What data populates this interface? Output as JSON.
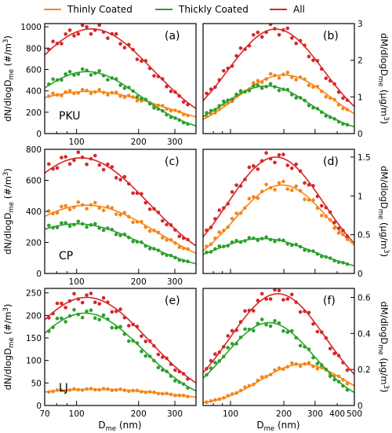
{
  "legend": [
    {
      "label": "Thinly Coated",
      "color": "#f58518"
    },
    {
      "label": "Thickly Coated",
      "color": "#2ca02c"
    },
    {
      "label": "All",
      "color": "#d62728"
    }
  ],
  "axis_labels": {
    "number": "dN/dlogD_me (#/m^3)",
    "mass": "dM/dlogD_me (µg/m^3)",
    "x": "D_me (nm)"
  },
  "site_labels": [
    "PKU",
    "CP",
    "LJ"
  ],
  "chart_data": [
    {
      "panel": "(a)",
      "type": "line",
      "site": "PKU",
      "quantity": "number",
      "xscale": "log",
      "xlim": [
        70,
        380
      ],
      "ylim": [
        0,
        1030
      ],
      "yticks": [
        0,
        200,
        400,
        600,
        800,
        1000
      ],
      "xticks": [
        100,
        200,
        300
      ],
      "series": [
        {
          "name": "Thinly Coated",
          "color": "#f58518",
          "peak": 395,
          "mode": 115,
          "width": 0.38
        },
        {
          "name": "Thickly Coated",
          "color": "#2ca02c",
          "peak": 580,
          "mode": 112,
          "width": 0.26
        },
        {
          "name": "All",
          "color": "#d62728",
          "peak": 980,
          "mode": 118,
          "width": 0.3
        }
      ]
    },
    {
      "panel": "(b)",
      "type": "line",
      "site": "PKU",
      "quantity": "mass",
      "xscale": "log",
      "xlim": [
        70,
        500
      ],
      "ylim": [
        0,
        3
      ],
      "yticks": [
        0,
        1,
        2,
        3
      ],
      "xticks": [],
      "series": [
        {
          "name": "Thinly Coated",
          "color": "#f58518",
          "peak": 1.6,
          "mode": 200,
          "width": 0.27
        },
        {
          "name": "Thickly Coated",
          "color": "#2ca02c",
          "peak": 1.3,
          "mode": 160,
          "width": 0.25
        },
        {
          "name": "All",
          "color": "#d62728",
          "peak": 2.85,
          "mode": 180,
          "width": 0.27
        }
      ]
    },
    {
      "panel": "(c)",
      "type": "line",
      "site": "CP",
      "quantity": "number",
      "xscale": "log",
      "xlim": [
        70,
        380
      ],
      "ylim": [
        0,
        800
      ],
      "yticks": [
        0,
        200,
        400,
        600,
        800
      ],
      "xticks": [
        100,
        200,
        300
      ],
      "series": [
        {
          "name": "Thinly Coated",
          "color": "#f58518",
          "peak": 440,
          "mode": 112,
          "width": 0.34
        },
        {
          "name": "Thickly Coated",
          "color": "#2ca02c",
          "peak": 320,
          "mode": 100,
          "width": 0.32
        },
        {
          "name": "All",
          "color": "#d62728",
          "peak": 745,
          "mode": 105,
          "width": 0.33
        }
      ]
    },
    {
      "panel": "(d)",
      "type": "line",
      "site": "CP",
      "quantity": "mass",
      "xscale": "log",
      "xlim": [
        70,
        500
      ],
      "ylim": [
        0,
        1.6
      ],
      "yticks": [
        0,
        0.5,
        1.0,
        1.5
      ],
      "xticks": [],
      "series": [
        {
          "name": "Thinly Coated",
          "color": "#f58518",
          "peak": 1.14,
          "mode": 195,
          "width": 0.27
        },
        {
          "name": "Thickly Coated",
          "color": "#2ca02c",
          "peak": 0.45,
          "mode": 150,
          "width": 0.3
        },
        {
          "name": "All",
          "color": "#d62728",
          "peak": 1.5,
          "mode": 180,
          "width": 0.27
        }
      ]
    },
    {
      "panel": "(e)",
      "type": "line",
      "site": "LJ",
      "quantity": "number",
      "xscale": "log",
      "xlim": [
        70,
        380
      ],
      "ylim": [
        0,
        260
      ],
      "yticks": [
        0,
        50,
        100,
        150,
        200,
        250
      ],
      "xticks": [
        70,
        100,
        200,
        300
      ],
      "series": [
        {
          "name": "Thinly Coated",
          "color": "#f58518",
          "peak": 36,
          "mode": 125,
          "width": 0.42
        },
        {
          "name": "Thickly Coated",
          "color": "#2ca02c",
          "peak": 205,
          "mode": 110,
          "width": 0.28
        },
        {
          "name": "All",
          "color": "#d62728",
          "peak": 240,
          "mode": 112,
          "width": 0.3
        }
      ]
    },
    {
      "panel": "(f)",
      "type": "line",
      "site": "LJ",
      "quantity": "mass",
      "xscale": "log",
      "xlim": [
        70,
        500
      ],
      "ylim": [
        0,
        0.65
      ],
      "yticks": [
        0,
        0.2,
        0.4,
        0.6
      ],
      "xticks": [
        100,
        200,
        300,
        400,
        500
      ],
      "series": [
        {
          "name": "Thinly Coated",
          "color": "#f58518",
          "peak": 0.23,
          "mode": 255,
          "width": 0.24
        },
        {
          "name": "Thickly Coated",
          "color": "#2ca02c",
          "peak": 0.46,
          "mode": 165,
          "width": 0.25
        },
        {
          "name": "All",
          "color": "#d62728",
          "peak": 0.62,
          "mode": 185,
          "width": 0.27
        }
      ]
    }
  ]
}
